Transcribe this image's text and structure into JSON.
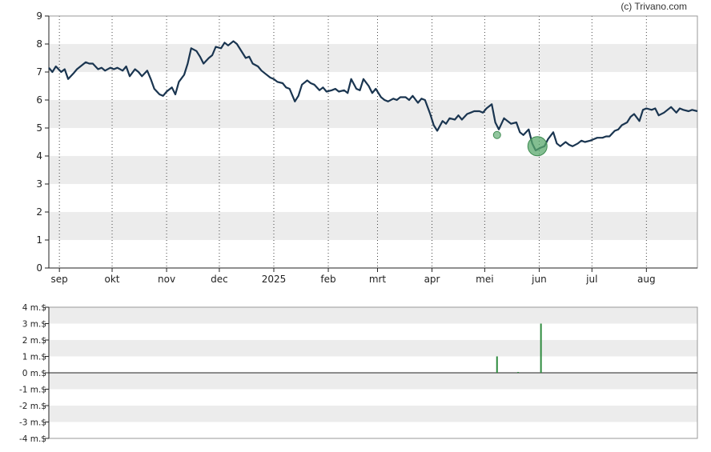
{
  "credit": "(c) Trivano.com",
  "chart_data": [
    {
      "type": "line",
      "title": "",
      "xlabel": "",
      "ylabel": "",
      "ylim": [
        0,
        9
      ],
      "y_ticks": [
        "0",
        "1",
        "2",
        "3",
        "4",
        "5",
        "6",
        "7",
        "8",
        "9"
      ],
      "x_ticks": [
        "sep",
        "okt",
        "nov",
        "dec",
        "2025",
        "feb",
        "mrt",
        "apr",
        "mei",
        "jun",
        "jul",
        "aug"
      ],
      "grid": "vertical dotted at month starts, alternating horizontal bands",
      "x_start": "2024-08-26",
      "x_end": "2025-08-30",
      "series": [
        {
          "color": "#1a3550",
          "points": [
            [
              "2024-08-26",
              7.15
            ],
            [
              "2024-08-28",
              7.0
            ],
            [
              "2024-08-30",
              7.2
            ],
            [
              "2024-09-02",
              7.0
            ],
            [
              "2024-09-04",
              7.1
            ],
            [
              "2024-09-06",
              6.75
            ],
            [
              "2024-09-09",
              6.95
            ],
            [
              "2024-09-11",
              7.1
            ],
            [
              "2024-09-13",
              7.2
            ],
            [
              "2024-09-16",
              7.35
            ],
            [
              "2024-09-18",
              7.3
            ],
            [
              "2024-09-20",
              7.3
            ],
            [
              "2024-09-23",
              7.1
            ],
            [
              "2024-09-25",
              7.15
            ],
            [
              "2024-09-27",
              7.05
            ],
            [
              "2024-09-30",
              7.15
            ],
            [
              "2024-10-02",
              7.1
            ],
            [
              "2024-10-04",
              7.15
            ],
            [
              "2024-10-07",
              7.05
            ],
            [
              "2024-10-09",
              7.2
            ],
            [
              "2024-10-11",
              6.85
            ],
            [
              "2024-10-14",
              7.1
            ],
            [
              "2024-10-16",
              7.0
            ],
            [
              "2024-10-18",
              6.85
            ],
            [
              "2024-10-21",
              7.05
            ],
            [
              "2024-10-23",
              6.75
            ],
            [
              "2024-10-25",
              6.4
            ],
            [
              "2024-10-28",
              6.2
            ],
            [
              "2024-10-30",
              6.15
            ],
            [
              "2024-11-01",
              6.3
            ],
            [
              "2024-11-04",
              6.45
            ],
            [
              "2024-11-06",
              6.2
            ],
            [
              "2024-11-08",
              6.65
            ],
            [
              "2024-11-11",
              6.9
            ],
            [
              "2024-11-13",
              7.3
            ],
            [
              "2024-11-15",
              7.85
            ],
            [
              "2024-11-18",
              7.75
            ],
            [
              "2024-11-20",
              7.55
            ],
            [
              "2024-11-22",
              7.3
            ],
            [
              "2024-11-25",
              7.5
            ],
            [
              "2024-11-27",
              7.6
            ],
            [
              "2024-11-29",
              7.9
            ],
            [
              "2024-12-02",
              7.85
            ],
            [
              "2024-12-04",
              8.05
            ],
            [
              "2024-12-06",
              7.95
            ],
            [
              "2024-12-09",
              8.1
            ],
            [
              "2024-12-11",
              8.0
            ],
            [
              "2024-12-13",
              7.8
            ],
            [
              "2024-12-16",
              7.5
            ],
            [
              "2024-12-18",
              7.55
            ],
            [
              "2024-12-20",
              7.3
            ],
            [
              "2024-12-23",
              7.2
            ],
            [
              "2024-12-25",
              7.05
            ],
            [
              "2024-12-27",
              6.95
            ],
            [
              "2024-12-30",
              6.8
            ],
            [
              "2025-01-01",
              6.75
            ],
            [
              "2025-01-03",
              6.65
            ],
            [
              "2025-01-06",
              6.6
            ],
            [
              "2025-01-08",
              6.45
            ],
            [
              "2025-01-10",
              6.4
            ],
            [
              "2025-01-13",
              5.95
            ],
            [
              "2025-01-15",
              6.15
            ],
            [
              "2025-01-17",
              6.55
            ],
            [
              "2025-01-20",
              6.7
            ],
            [
              "2025-01-22",
              6.6
            ],
            [
              "2025-01-24",
              6.55
            ],
            [
              "2025-01-27",
              6.35
            ],
            [
              "2025-01-29",
              6.45
            ],
            [
              "2025-01-31",
              6.3
            ],
            [
              "2025-02-03",
              6.35
            ],
            [
              "2025-02-05",
              6.4
            ],
            [
              "2025-02-07",
              6.3
            ],
            [
              "2025-02-10",
              6.35
            ],
            [
              "2025-02-12",
              6.25
            ],
            [
              "2025-02-14",
              6.75
            ],
            [
              "2025-02-17",
              6.4
            ],
            [
              "2025-02-19",
              6.35
            ],
            [
              "2025-02-21",
              6.75
            ],
            [
              "2025-02-24",
              6.5
            ],
            [
              "2025-02-26",
              6.25
            ],
            [
              "2025-02-28",
              6.4
            ],
            [
              "2025-03-03",
              6.1
            ],
            [
              "2025-03-05",
              6.0
            ],
            [
              "2025-03-07",
              5.95
            ],
            [
              "2025-03-10",
              6.05
            ],
            [
              "2025-03-12",
              6.0
            ],
            [
              "2025-03-14",
              6.1
            ],
            [
              "2025-03-17",
              6.1
            ],
            [
              "2025-03-19",
              6.0
            ],
            [
              "2025-03-21",
              6.15
            ],
            [
              "2025-03-24",
              5.9
            ],
            [
              "2025-03-26",
              6.05
            ],
            [
              "2025-03-28",
              6.0
            ],
            [
              "2025-03-31",
              5.5
            ],
            [
              "2025-04-02",
              5.1
            ],
            [
              "2025-04-04",
              4.9
            ],
            [
              "2025-04-07",
              5.25
            ],
            [
              "2025-04-09",
              5.15
            ],
            [
              "2025-04-11",
              5.35
            ],
            [
              "2025-04-14",
              5.3
            ],
            [
              "2025-04-16",
              5.45
            ],
            [
              "2025-04-18",
              5.3
            ],
            [
              "2025-04-21",
              5.5
            ],
            [
              "2025-04-23",
              5.55
            ],
            [
              "2025-04-25",
              5.6
            ],
            [
              "2025-04-28",
              5.6
            ],
            [
              "2025-04-30",
              5.55
            ],
            [
              "2025-05-02",
              5.7
            ],
            [
              "2025-05-05",
              5.85
            ],
            [
              "2025-05-07",
              5.2
            ],
            [
              "2025-05-09",
              4.95
            ],
            [
              "2025-05-12",
              5.35
            ],
            [
              "2025-05-14",
              5.25
            ],
            [
              "2025-05-16",
              5.15
            ],
            [
              "2025-05-19",
              5.2
            ],
            [
              "2025-05-21",
              4.85
            ],
            [
              "2025-05-23",
              4.75
            ],
            [
              "2025-05-26",
              4.95
            ],
            [
              "2025-05-28",
              4.45
            ],
            [
              "2025-05-30",
              4.2
            ],
            [
              "2025-06-02",
              4.3
            ],
            [
              "2025-06-04",
              4.35
            ],
            [
              "2025-06-06",
              4.6
            ],
            [
              "2025-06-09",
              4.85
            ],
            [
              "2025-06-11",
              4.45
            ],
            [
              "2025-06-13",
              4.35
            ],
            [
              "2025-06-16",
              4.5
            ],
            [
              "2025-06-18",
              4.4
            ],
            [
              "2025-06-20",
              4.35
            ],
            [
              "2025-06-23",
              4.45
            ],
            [
              "2025-06-25",
              4.55
            ],
            [
              "2025-06-27",
              4.5
            ],
            [
              "2025-06-30",
              4.55
            ],
            [
              "2025-07-02",
              4.6
            ],
            [
              "2025-07-04",
              4.65
            ],
            [
              "2025-07-07",
              4.65
            ],
            [
              "2025-07-09",
              4.7
            ],
            [
              "2025-07-11",
              4.7
            ],
            [
              "2025-07-14",
              4.9
            ],
            [
              "2025-07-16",
              4.95
            ],
            [
              "2025-07-18",
              5.1
            ],
            [
              "2025-07-21",
              5.2
            ],
            [
              "2025-07-23",
              5.4
            ],
            [
              "2025-07-25",
              5.5
            ],
            [
              "2025-07-28",
              5.25
            ],
            [
              "2025-07-30",
              5.65
            ],
            [
              "2025-08-01",
              5.7
            ],
            [
              "2025-08-04",
              5.65
            ],
            [
              "2025-08-06",
              5.7
            ],
            [
              "2025-08-08",
              5.45
            ],
            [
              "2025-08-11",
              5.55
            ],
            [
              "2025-08-13",
              5.65
            ],
            [
              "2025-08-15",
              5.75
            ],
            [
              "2025-08-18",
              5.55
            ],
            [
              "2025-08-20",
              5.7
            ],
            [
              "2025-08-22",
              5.65
            ],
            [
              "2025-08-25",
              5.6
            ],
            [
              "2025-08-27",
              5.65
            ],
            [
              "2025-08-30",
              5.6
            ]
          ]
        }
      ],
      "markers": [
        {
          "date": "2025-05-08",
          "value": 4.75,
          "size": "small",
          "color": "#6db37e"
        },
        {
          "date": "2025-05-31",
          "value": 4.35,
          "size": "large",
          "color": "#5aa86c"
        }
      ]
    },
    {
      "type": "bar",
      "title": "",
      "xlabel": "",
      "ylabel": "",
      "ylim": [
        -4,
        4
      ],
      "y_ticks": [
        "-4 m.$",
        "-3 m.$",
        "-2 m.$",
        "-1 m.$",
        "0 m.$",
        "1 m.$",
        "2 m.$",
        "3 m.$",
        "4 m.$"
      ],
      "grid": "alternating horizontal bands, zero line",
      "series": [
        {
          "color": "#2e8b3e",
          "points": [
            [
              "2025-05-08",
              1.0
            ],
            [
              "2025-05-20",
              0.05
            ],
            [
              "2025-06-02",
              3.0
            ]
          ]
        }
      ]
    }
  ]
}
